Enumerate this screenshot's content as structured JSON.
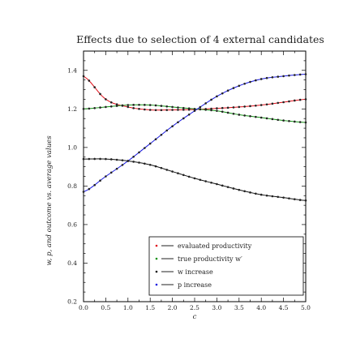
{
  "chart_data": {
    "type": "line",
    "title": "Effects due to selection of 4 external candidates",
    "xlabel": "c",
    "ylabel": "w, p, and outcome vs. average values",
    "xlim": [
      0.0,
      5.0
    ],
    "ylim": [
      0.2,
      1.5
    ],
    "xticks": [
      "0.0",
      "0.5",
      "1.0",
      "1.5",
      "2.0",
      "2.5",
      "3.0",
      "3.5",
      "4.0",
      "4.5",
      "5.0"
    ],
    "yticks": [
      "0.2",
      "0.4",
      "0.6",
      "0.8",
      "1.0",
      "1.2",
      "1.4"
    ],
    "legend_position": "lower-right",
    "grid": false,
    "series": [
      {
        "name": "evaluated productivity",
        "color": "#e0101a",
        "x": [
          0.0,
          0.5,
          1.0,
          1.5,
          2.0,
          2.5,
          3.0,
          3.5,
          4.0,
          4.5,
          5.0
        ],
        "y": [
          1.37,
          1.25,
          1.21,
          1.195,
          1.195,
          1.197,
          1.203,
          1.21,
          1.22,
          1.235,
          1.25
        ]
      },
      {
        "name": "true productivity w'",
        "color": "#129012",
        "x": [
          0.0,
          0.5,
          1.0,
          1.5,
          2.0,
          2.5,
          3.0,
          3.5,
          4.0,
          4.5,
          5.0
        ],
        "y": [
          1.2,
          1.21,
          1.22,
          1.22,
          1.21,
          1.2,
          1.19,
          1.17,
          1.155,
          1.14,
          1.13
        ]
      },
      {
        "name": "w increase",
        "color": "#111111",
        "x": [
          0.0,
          0.5,
          1.0,
          1.5,
          2.0,
          2.5,
          3.0,
          3.5,
          4.0,
          4.5,
          5.0
        ],
        "y": [
          0.94,
          0.94,
          0.93,
          0.91,
          0.875,
          0.84,
          0.81,
          0.78,
          0.755,
          0.74,
          0.725
        ]
      },
      {
        "name": "p increase",
        "color": "#1818e0",
        "x": [
          0.0,
          0.5,
          1.0,
          1.5,
          2.0,
          2.5,
          3.0,
          3.5,
          4.0,
          4.5,
          5.0
        ],
        "y": [
          0.77,
          0.85,
          0.93,
          1.02,
          1.11,
          1.19,
          1.265,
          1.32,
          1.355,
          1.37,
          1.38
        ]
      }
    ],
    "legend_labels": [
      "evaluated productivity",
      "true productivity w′",
      "w increase",
      "p increase"
    ]
  }
}
